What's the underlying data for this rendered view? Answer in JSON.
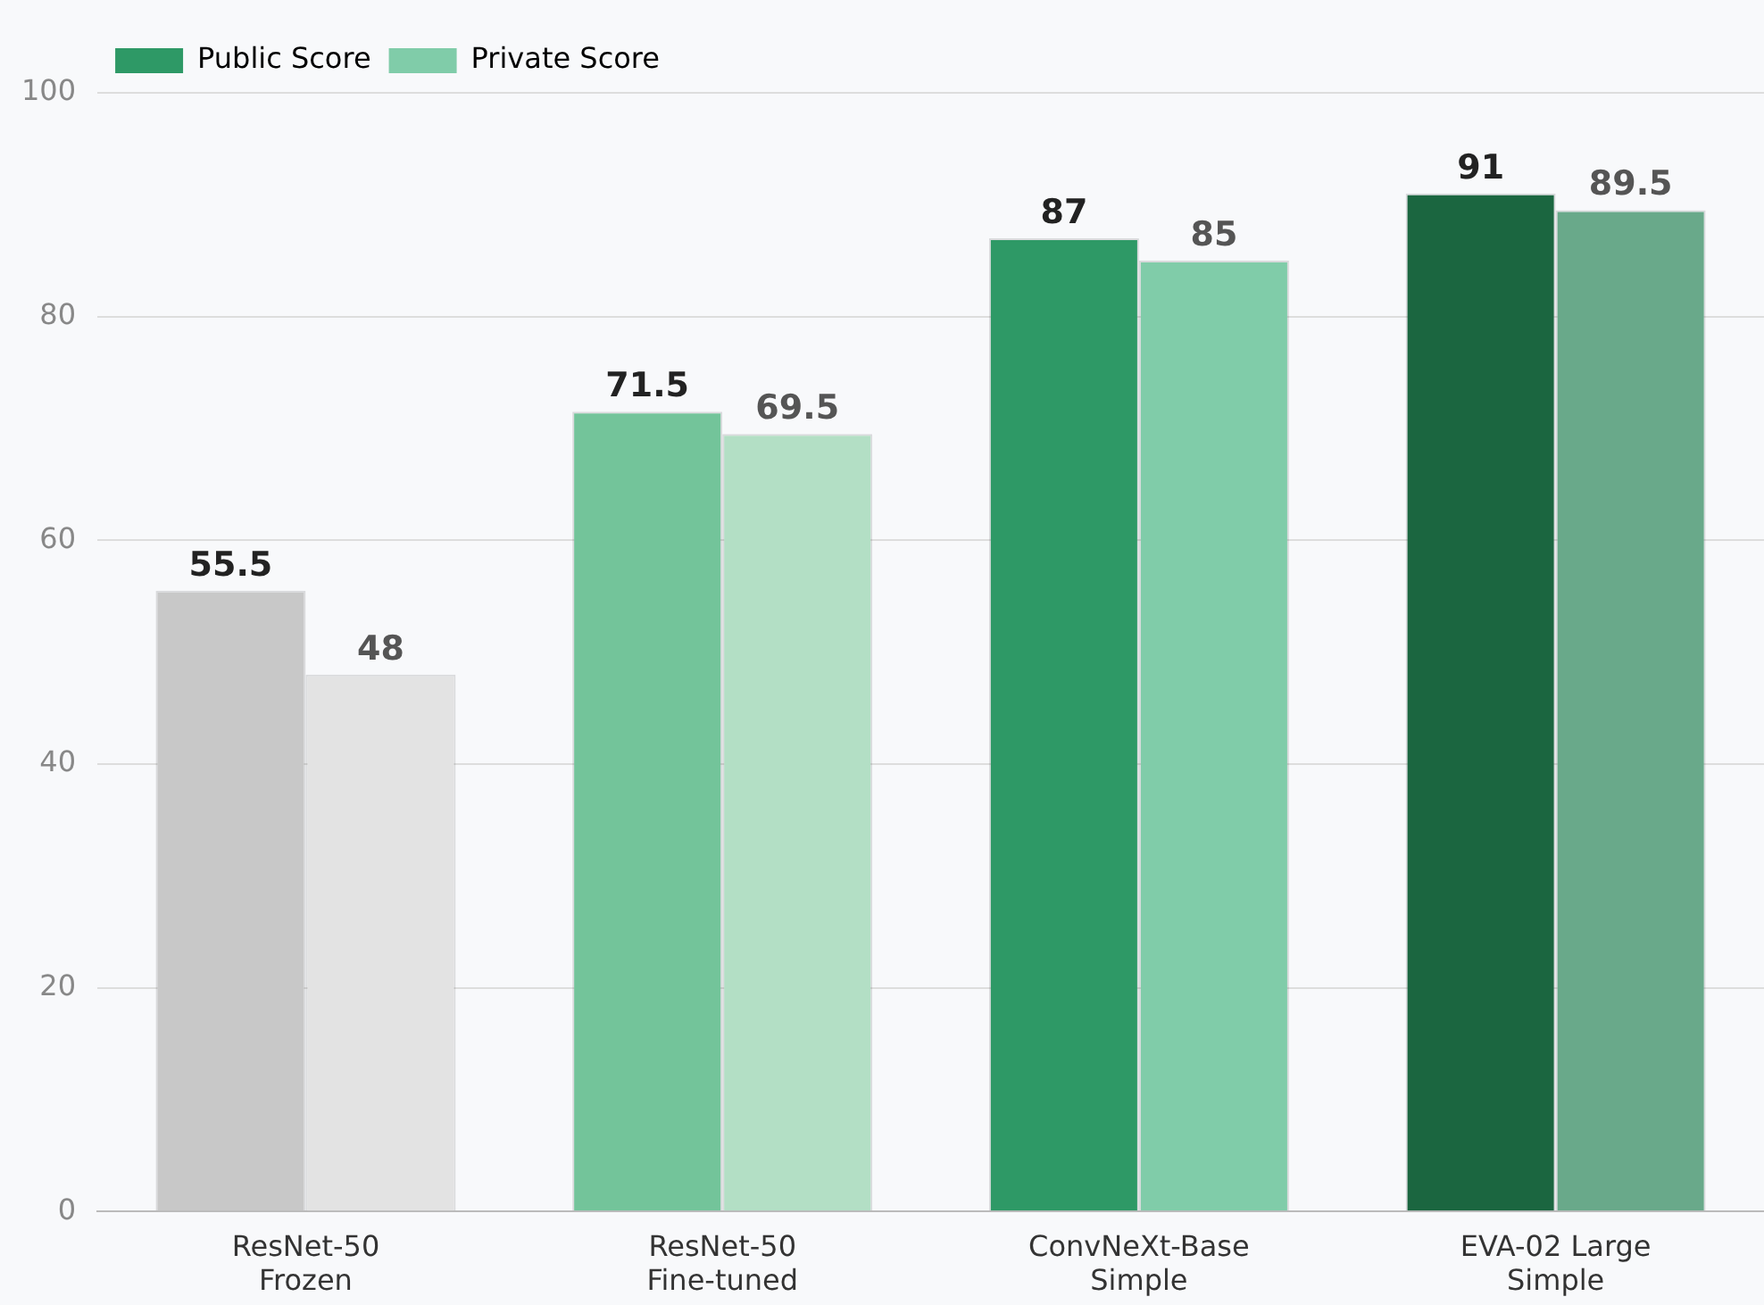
{
  "chart_data": {
    "type": "bar",
    "categories": [
      "ResNet-50\nFrozen",
      "ResNet-50\nFine-tuned",
      "ConvNeXt-Base\nSimple",
      "EVA-02 Large\nSimple"
    ],
    "series": [
      {
        "name": "Public Score",
        "color": "#2e9966",
        "colors": [
          "#c8c8c8",
          "#73c49a",
          "#2e9966",
          "#1b6640"
        ],
        "values": [
          55.5,
          71.5,
          87,
          91
        ]
      },
      {
        "name": "Private Score",
        "color": "#80cca9",
        "colors": [
          "#e3e3e3",
          "#b3dfc5",
          "#80cca9",
          "#69a98a"
        ],
        "values": [
          48,
          69.5,
          85,
          89.5
        ]
      }
    ],
    "ylim": [
      0,
      100
    ],
    "yticks": [
      0,
      20,
      40,
      60,
      80,
      100
    ],
    "grid": "y",
    "legend": "top left",
    "data_labels": true
  }
}
